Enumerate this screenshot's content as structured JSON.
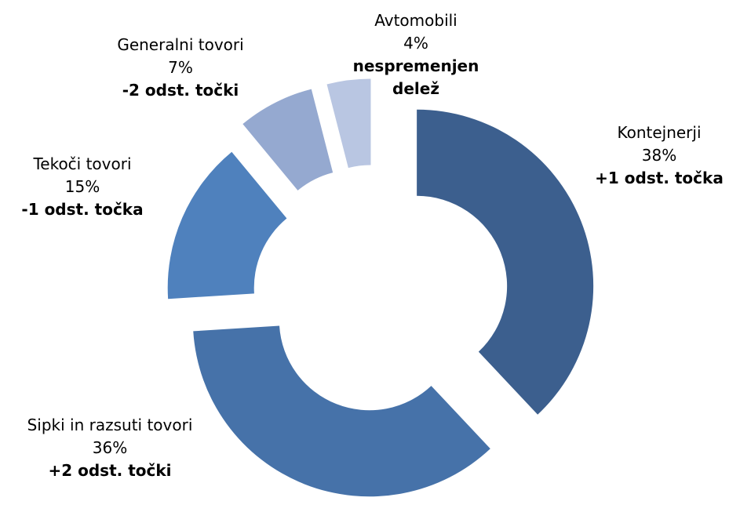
{
  "chart_data": {
    "type": "donut",
    "categories": [
      "Kontejnerji",
      "Sipki in razsuti tovori",
      "Tekoči tovori",
      "Generalni tovori",
      "Avtomobili"
    ],
    "values": [
      38,
      36,
      15,
      7,
      4
    ],
    "value_labels": [
      "38%",
      "36%",
      "15%",
      "7%",
      "4%"
    ],
    "changes": [
      "+1 odst. točka",
      "+2 odst. točki",
      "-1 odst. točka",
      "-2 odst. točki",
      "nespremenjen delež"
    ],
    "colors": [
      "#3c5f8e",
      "#4672a9",
      "#4f81bd",
      "#95a9d0",
      "#b9c6e2"
    ]
  }
}
